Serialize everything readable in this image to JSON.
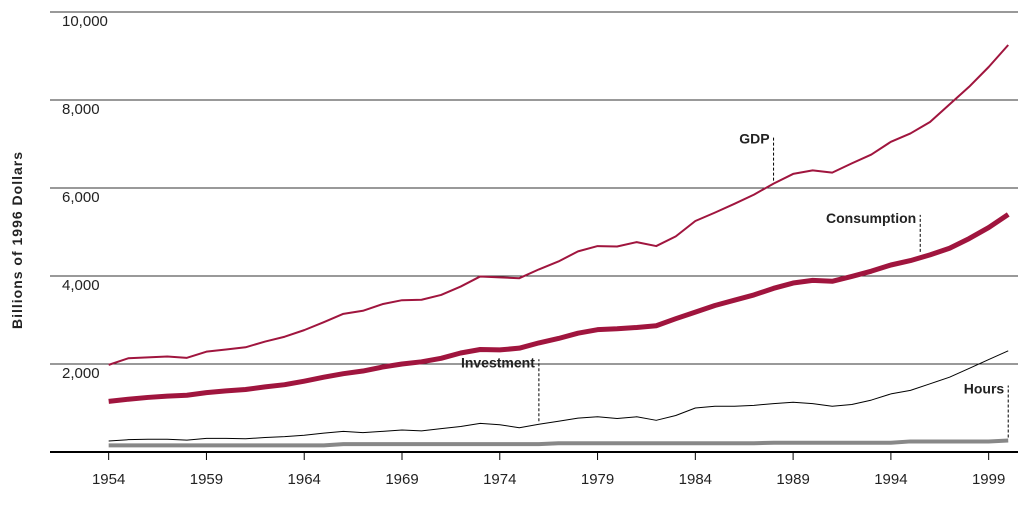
{
  "chart_data": {
    "type": "line",
    "y_label": "Billions of 1996 Dollars",
    "x": [
      1954,
      1955,
      1956,
      1957,
      1958,
      1959,
      1960,
      1961,
      1962,
      1963,
      1964,
      1965,
      1966,
      1967,
      1968,
      1969,
      1970,
      1971,
      1972,
      1973,
      1974,
      1975,
      1976,
      1977,
      1978,
      1979,
      1980,
      1981,
      1982,
      1983,
      1984,
      1985,
      1986,
      1987,
      1988,
      1989,
      1990,
      1991,
      1992,
      1993,
      1994,
      1995,
      1996,
      1997,
      1998,
      1999,
      2000
    ],
    "xlim": [
      1951,
      2000.5
    ],
    "xticks": [
      1954,
      1959,
      1964,
      1969,
      1974,
      1979,
      1984,
      1989,
      1994,
      1999
    ],
    "ylim": [
      0,
      10000
    ],
    "yticks": [
      {
        "value": 2000,
        "label": "2,000"
      },
      {
        "value": 4000,
        "label": "4,000"
      },
      {
        "value": 6000,
        "label": "6,000"
      },
      {
        "value": 8000,
        "label": "8,000"
      },
      {
        "value": 10000,
        "label": "10,000"
      }
    ],
    "grid": true,
    "series": [
      {
        "name": "GDP",
        "color": "#a0153e",
        "values": [
          1980,
          2130,
          2150,
          2170,
          2140,
          2280,
          2330,
          2380,
          2510,
          2620,
          2770,
          2950,
          3140,
          3210,
          3360,
          3450,
          3460,
          3570,
          3760,
          3990,
          3970,
          3950,
          4150,
          4330,
          4560,
          4680,
          4670,
          4770,
          4680,
          4900,
          5250,
          5440,
          5640,
          5850,
          6100,
          6320,
          6400,
          6350,
          6560,
          6760,
          7050,
          7240,
          7500,
          7900,
          8300,
          8750,
          9250
        ]
      },
      {
        "name": "Consumption",
        "color": "#a0153e",
        "values": [
          1150,
          1200,
          1240,
          1270,
          1290,
          1350,
          1390,
          1420,
          1480,
          1530,
          1610,
          1700,
          1780,
          1840,
          1930,
          2000,
          2050,
          2130,
          2250,
          2330,
          2320,
          2360,
          2480,
          2580,
          2700,
          2780,
          2800,
          2830,
          2870,
          3030,
          3180,
          3330,
          3450,
          3570,
          3720,
          3840,
          3900,
          3880,
          3990,
          4110,
          4250,
          4350,
          4480,
          4630,
          4850,
          5100,
          5400
        ]
      },
      {
        "name": "Investment",
        "color": "#000000",
        "values": [
          250,
          280,
          290,
          290,
          270,
          310,
          310,
          300,
          330,
          350,
          380,
          430,
          470,
          440,
          470,
          500,
          480,
          530,
          580,
          650,
          620,
          550,
          630,
          700,
          770,
          800,
          760,
          800,
          720,
          830,
          1000,
          1040,
          1040,
          1060,
          1100,
          1130,
          1100,
          1040,
          1080,
          1180,
          1320,
          1400,
          1550,
          1700,
          1900,
          2100,
          2300
        ]
      },
      {
        "name": "Hours",
        "color": "#888888",
        "values": [
          150,
          150,
          150,
          150,
          150,
          150,
          150,
          150,
          150,
          150,
          150,
          150,
          180,
          180,
          180,
          180,
          180,
          180,
          180,
          180,
          180,
          180,
          180,
          200,
          200,
          200,
          200,
          200,
          200,
          200,
          200,
          200,
          200,
          200,
          210,
          210,
          210,
          210,
          210,
          210,
          210,
          240,
          240,
          240,
          240,
          240,
          260
        ]
      }
    ]
  }
}
